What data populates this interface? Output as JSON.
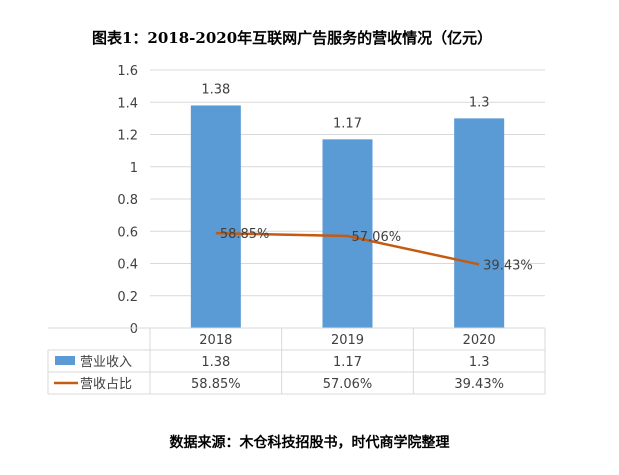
{
  "title": "图表1：2018-2020年互联网广告服务的营收情况（亿元）",
  "source": "数据来源：木仓科技招股书，时代商学院整理",
  "colors": {
    "bar": "#5b9bd5",
    "line": "#c55a11",
    "grid": "#d9d9d9",
    "text": "#404040"
  },
  "chart_data": {
    "type": "bar",
    "categories": [
      "2018",
      "2019",
      "2020"
    ],
    "ylim": [
      0,
      1.6
    ],
    "yticks": [
      "0",
      "0.2",
      "0.4",
      "0.6",
      "0.8",
      "1",
      "1.2",
      "1.4",
      "1.6"
    ],
    "grid": true,
    "legend": "data-table",
    "series": [
      {
        "name": "营业收入",
        "kind": "bar",
        "values": [
          1.38,
          1.17,
          1.3
        ],
        "labels": [
          "1.38",
          "1.17",
          "1.3"
        ]
      },
      {
        "name": "营收占比",
        "kind": "line",
        "values": [
          0.5885,
          0.5706,
          0.3943
        ],
        "labels": [
          "58.85%",
          "57.06%",
          "39.43%"
        ]
      }
    ]
  }
}
